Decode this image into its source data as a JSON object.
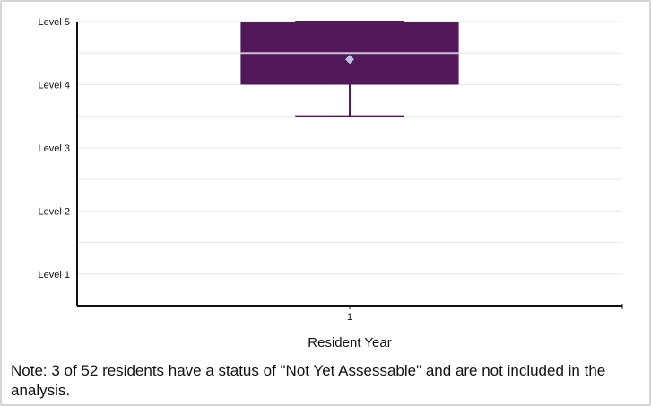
{
  "chart_data": {
    "type": "boxplot",
    "title": "",
    "xlabel": "Resident Year",
    "ylabel": "",
    "categories": [
      "1"
    ],
    "y_ticks": [
      {
        "value": 1,
        "label": "Level 1"
      },
      {
        "value": 2,
        "label": "Level 2"
      },
      {
        "value": 3,
        "label": "Level 3"
      },
      {
        "value": 4,
        "label": "Level 4"
      },
      {
        "value": 5,
        "label": "Level 5"
      }
    ],
    "ylim": [
      0.5,
      5.0
    ],
    "grid": true,
    "boxes": [
      {
        "category": "1",
        "min": 3.5,
        "q1": 4.0,
        "median": 4.5,
        "q3": 5.0,
        "max": 5.0,
        "mean": 4.4
      }
    ],
    "colors": {
      "box": "#52185a",
      "median": "#c9c2d8",
      "mean": "#b9c3e3",
      "grid": "#e6e6e6",
      "axis": "#111111"
    }
  },
  "note": "Note: 3 of 52 residents have a status of \"Not Yet Assessable\" and are not included in the analysis."
}
